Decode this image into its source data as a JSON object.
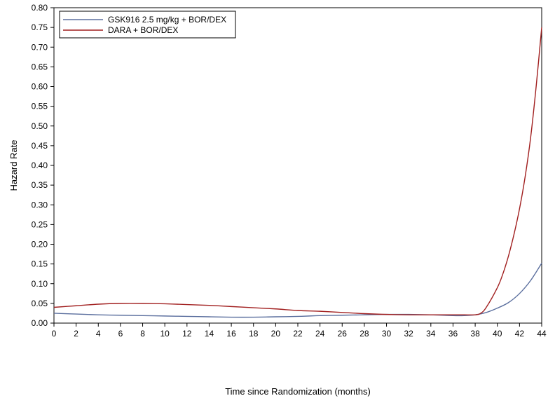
{
  "chart_data": {
    "type": "line",
    "xlabel": "Time since Randomization (months)",
    "ylabel": "Hazard Rate",
    "xlim": [
      0,
      44
    ],
    "ylim": [
      0,
      0.8
    ],
    "x_ticks": [
      "0",
      "2",
      "4",
      "6",
      "8",
      "10",
      "12",
      "14",
      "16",
      "18",
      "20",
      "22",
      "24",
      "26",
      "28",
      "30",
      "32",
      "34",
      "36",
      "38",
      "40",
      "42",
      "44"
    ],
    "y_ticks": [
      "0.00",
      "0.05",
      "0.10",
      "0.15",
      "0.20",
      "0.25",
      "0.30",
      "0.35",
      "0.40",
      "0.45",
      "0.50",
      "0.55",
      "0.60",
      "0.65",
      "0.70",
      "0.75",
      "0.80"
    ],
    "grid": false,
    "legend_position": "top-left",
    "series": [
      {
        "name": "GSK916 2.5 mg/kg + BOR/DEX",
        "color": "#5b6f9e",
        "x": [
          0,
          2,
          4,
          6,
          8,
          10,
          12,
          14,
          16,
          18,
          20,
          22,
          24,
          26,
          28,
          30,
          32,
          34,
          36,
          37,
          38,
          39,
          40,
          41,
          42,
          43,
          44
        ],
        "y": [
          0.025,
          0.023,
          0.021,
          0.02,
          0.019,
          0.018,
          0.017,
          0.016,
          0.015,
          0.015,
          0.016,
          0.017,
          0.019,
          0.02,
          0.021,
          0.022,
          0.022,
          0.021,
          0.019,
          0.019,
          0.021,
          0.027,
          0.038,
          0.052,
          0.075,
          0.108,
          0.152
        ]
      },
      {
        "name": "DARA + BOR/DEX",
        "color": "#a11f1f",
        "x": [
          0,
          2,
          4,
          6,
          8,
          10,
          12,
          14,
          16,
          18,
          20,
          22,
          24,
          26,
          28,
          30,
          32,
          34,
          36,
          37,
          38,
          38.5,
          39,
          40,
          40.5,
          41,
          41.5,
          42,
          42.5,
          43,
          43.5,
          44
        ],
        "y": [
          0.04,
          0.044,
          0.048,
          0.05,
          0.05,
          0.049,
          0.047,
          0.045,
          0.042,
          0.039,
          0.036,
          0.032,
          0.03,
          0.027,
          0.024,
          0.022,
          0.021,
          0.021,
          0.021,
          0.021,
          0.021,
          0.025,
          0.04,
          0.09,
          0.125,
          0.17,
          0.225,
          0.29,
          0.37,
          0.47,
          0.6,
          0.75
        ]
      }
    ]
  }
}
